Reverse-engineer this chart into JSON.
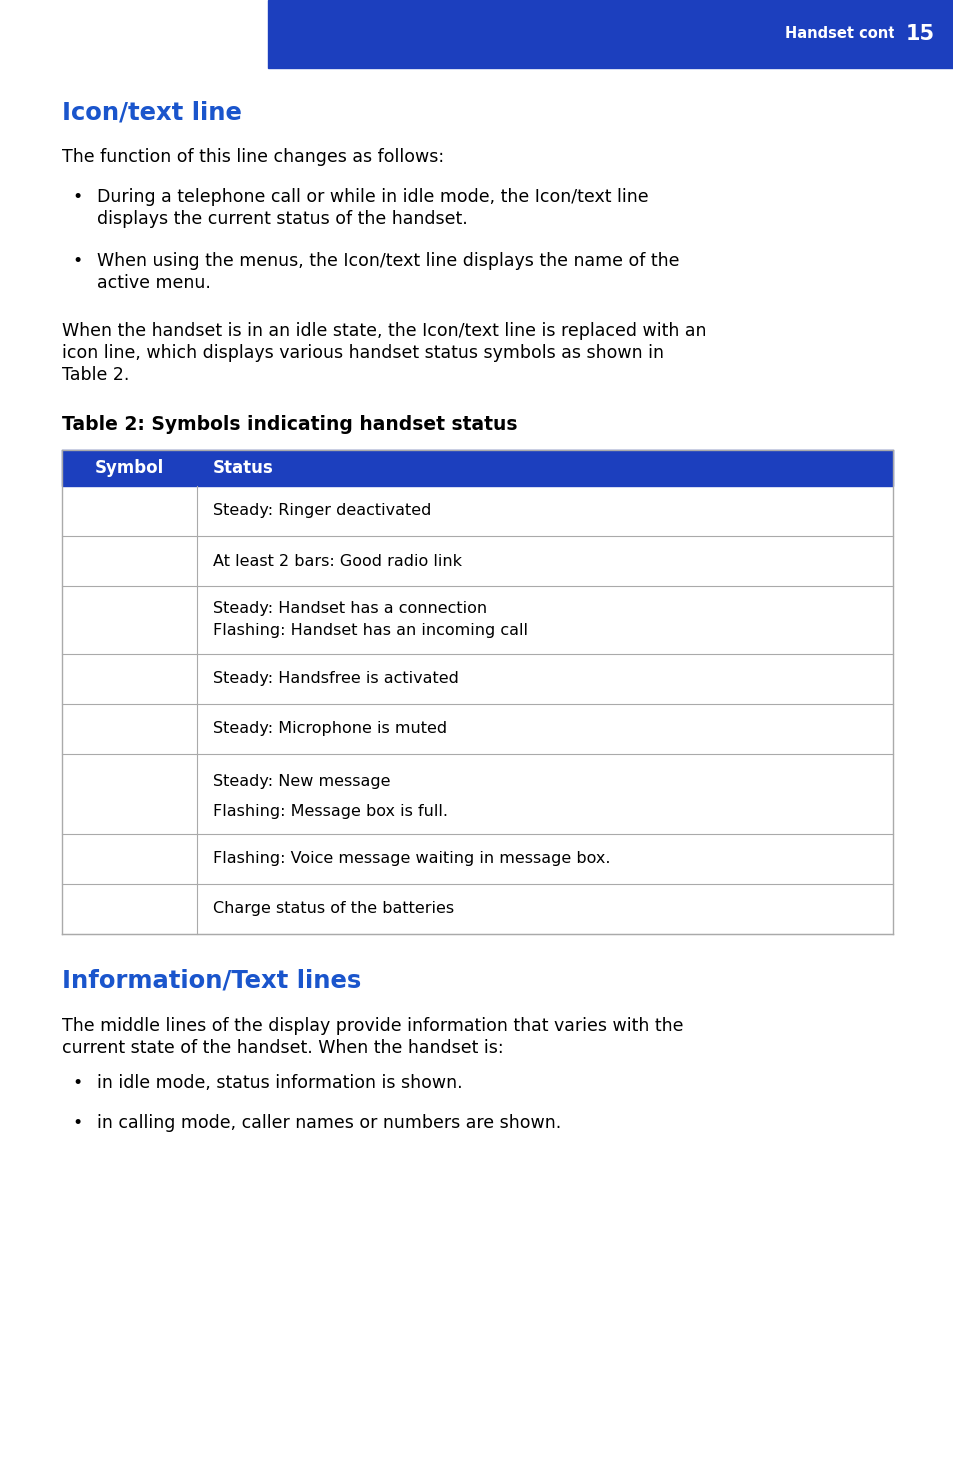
{
  "bg_color": "#ffffff",
  "header_blue": "#1c3fbe",
  "header_text": "Handset controls",
  "title1": "Icon/text line",
  "title1_color": "#1a55cc",
  "para1": "The function of this line changes as follows:",
  "bullet1a_line1": "During a telephone call or while in idle mode, the Icon/text line",
  "bullet1a_line2": "displays the current status of the handset.",
  "bullet1b_line1": "When using the menus, the Icon/text line displays the name of the",
  "bullet1b_line2": "active menu.",
  "para2_line1": "When the handset is in an idle state, the Icon/text line is replaced with an",
  "para2_line2": "icon line, which displays various handset status symbols as shown in",
  "para2_line3": "Table 2.",
  "table_title": "Table 2: Symbols indicating handset status",
  "table_header_bg": "#1c3fbe",
  "table_col1_header": "Symbol",
  "table_col2_header": "Status",
  "row_statuses": [
    "Steady: Ringer deactivated",
    "At least 2 bars: Good radio link",
    "Steady: Handset has a connection\nFlashing: Handset has an incoming call",
    "Steady: Handsfree is activated",
    "Steady: Microphone is muted",
    "Steady: New message\n\nFlashing: Message box is full.",
    "Flashing: Voice message waiting in message box.",
    "Charge status of the batteries"
  ],
  "title2": "Information/Text lines",
  "title2_color": "#1a55cc",
  "para3_line1": "The middle lines of the display provide information that varies with the",
  "para3_line2": "current state of the handset. When the handset is:",
  "bullet2a": "in idle mode, status information is shown.",
  "bullet2b": "in calling mode, caller names or numbers are shown.",
  "page_num": "15",
  "page_num_bg": "#1c3fbe",
  "border_color": "#aaaaaa",
  "text_color": "#000000",
  "body_font": "DejaVu Sans",
  "mono_font": "DejaVu Sans Mono"
}
